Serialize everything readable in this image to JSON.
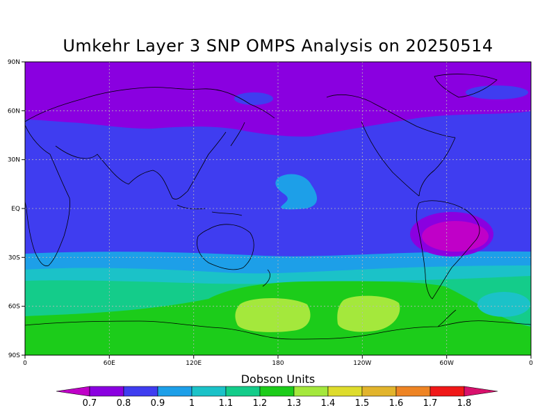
{
  "title": "Umkehr Layer 3 SNP OMPS Analysis on 20250514",
  "map": {
    "y_tick_labels": [
      "90N",
      "60N",
      "30N",
      "EQ",
      "30S",
      "60S",
      "90S"
    ],
    "x_tick_labels": [
      "0",
      "60E",
      "120E",
      "180",
      "120W",
      "60W",
      "0"
    ],
    "grid": true,
    "projection": "cylindrical equidistant, 0E centered"
  },
  "colorbar": {
    "title": "Dobson Units",
    "ticks": [
      "0.7",
      "0.8",
      "0.9",
      "1",
      "1.1",
      "1.2",
      "1.3",
      "1.4",
      "1.5",
      "1.6",
      "1.7",
      "1.8"
    ],
    "below_color": "#c000c8",
    "above_color": "#d8106c",
    "colors": [
      "#8a00e0",
      "#3f3df0",
      "#1d9fe8",
      "#1bc2c8",
      "#14cc8a",
      "#1ccc1a",
      "#a4e83c",
      "#dedc2c",
      "#e2b42c",
      "#ee8424",
      "#f01818"
    ]
  }
}
